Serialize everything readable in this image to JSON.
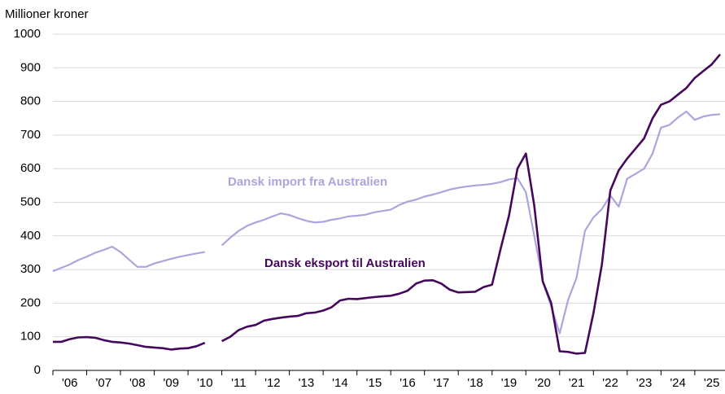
{
  "chart_data": {
    "type": "line",
    "y_label": "Millioner kroner",
    "categories": [
      null,
      null,
      "'06",
      null,
      null,
      null,
      "'07",
      null,
      null,
      null,
      "'08",
      null,
      null,
      null,
      "'09",
      null,
      null,
      null,
      "'10",
      null,
      null,
      null,
      "'11",
      null,
      null,
      null,
      "'12",
      null,
      null,
      null,
      "'13",
      null,
      null,
      null,
      "'14",
      null,
      null,
      null,
      "'15",
      null,
      null,
      null,
      "'16",
      null,
      null,
      null,
      "'17",
      null,
      null,
      null,
      "'18",
      null,
      null,
      null,
      "'19",
      null,
      null,
      null,
      "'20",
      null,
      null,
      null,
      "'21",
      null,
      null,
      null,
      "'22",
      null,
      null,
      null,
      "'23",
      null,
      null,
      null,
      "'24",
      null,
      null,
      null,
      "'25",
      null
    ],
    "series": [
      {
        "name": "Dansk import fra Australien",
        "color": "#aaa5de",
        "values": [
          295,
          305,
          315,
          328,
          338,
          350,
          358,
          368,
          352,
          330,
          308,
          308,
          318,
          325,
          332,
          338,
          343,
          348,
          352,
          null,
          372,
          395,
          415,
          430,
          440,
          448,
          458,
          467,
          462,
          453,
          445,
          440,
          442,
          448,
          452,
          458,
          460,
          463,
          470,
          474,
          478,
          492,
          502,
          508,
          517,
          523,
          530,
          538,
          543,
          547,
          550,
          552,
          555,
          560,
          568,
          572,
          530,
          400,
          265,
          190,
          110,
          210,
          275,
          415,
          455,
          480,
          520,
          487,
          570,
          585,
          600,
          645,
          722,
          730,
          752,
          770,
          745,
          755,
          760,
          762
        ]
      },
      {
        "name": "Dansk eksport til Australien",
        "color": "#45085c",
        "values": [
          85,
          85,
          93,
          98,
          99,
          97,
          90,
          85,
          83,
          80,
          75,
          70,
          68,
          66,
          62,
          65,
          66,
          72,
          82,
          null,
          87,
          100,
          120,
          130,
          135,
          148,
          153,
          157,
          160,
          162,
          170,
          172,
          178,
          188,
          208,
          213,
          212,
          215,
          218,
          220,
          222,
          228,
          237,
          258,
          267,
          268,
          258,
          240,
          232,
          233,
          234,
          248,
          255,
          360,
          460,
          600,
          645,
          490,
          265,
          200,
          57,
          55,
          50,
          52,
          170,
          315,
          535,
          595,
          630,
          660,
          690,
          750,
          790,
          800,
          820,
          840,
          870,
          890,
          910,
          940
        ]
      }
    ],
    "ylim": [
      0,
      1000
    ],
    "yticks": [
      0,
      100,
      200,
      300,
      400,
      500,
      600,
      700,
      800,
      900,
      1000
    ],
    "grid": true
  }
}
